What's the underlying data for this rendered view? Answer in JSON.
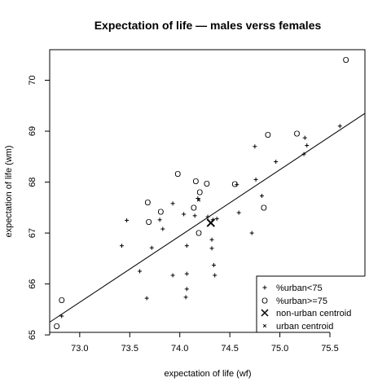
{
  "chart_data": {
    "type": "scatter",
    "title": "Expectation of life — males verss females",
    "xlabel": "expectation of life (wf)",
    "ylabel": "expectation of life (wm)",
    "xlim": [
      72.7,
      75.85
    ],
    "ylim": [
      65.05,
      70.6
    ],
    "x_ticks": [
      "73.0",
      "73.5",
      "74.0",
      "74.5",
      "75.0",
      "75.5"
    ],
    "y_ticks": [
      "65",
      "66",
      "67",
      "68",
      "69",
      "70"
    ],
    "grid": false,
    "legend_position": "bottom-right",
    "legend": [
      {
        "symbol": "+",
        "label": "%urban<75"
      },
      {
        "symbol": "O",
        "label": "%urban>=75"
      },
      {
        "symbol": "x",
        "label": "non-urban centroid"
      },
      {
        "symbol": "x",
        "label": "urban centroid"
      }
    ],
    "fit_line": {
      "x": [
        72.7,
        75.85
      ],
      "y": [
        65.25,
        69.35
      ]
    },
    "series": [
      {
        "name": "%urban<75",
        "symbol": "+",
        "points": [
          [
            72.82,
            65.37
          ],
          [
            73.42,
            66.75
          ],
          [
            73.47,
            67.25
          ],
          [
            73.6,
            66.25
          ],
          [
            73.67,
            65.72
          ],
          [
            73.72,
            66.71
          ],
          [
            73.8,
            67.26
          ],
          [
            73.83,
            67.08
          ],
          [
            73.93,
            67.58
          ],
          [
            73.93,
            66.17
          ],
          [
            74.04,
            67.37
          ],
          [
            74.06,
            65.74
          ],
          [
            74.07,
            65.9
          ],
          [
            74.07,
            66.2
          ],
          [
            74.07,
            66.75
          ],
          [
            74.15,
            67.34
          ],
          [
            74.18,
            67.68
          ],
          [
            74.28,
            67.32
          ],
          [
            74.32,
            66.87
          ],
          [
            74.32,
            66.7
          ],
          [
            74.33,
            67.26
          ],
          [
            74.34,
            66.37
          ],
          [
            74.35,
            66.17
          ],
          [
            74.37,
            67.28
          ],
          [
            74.57,
            67.95
          ],
          [
            74.59,
            67.4
          ],
          [
            74.72,
            67.0
          ],
          [
            74.75,
            68.7
          ],
          [
            74.76,
            68.05
          ],
          [
            74.82,
            67.73
          ],
          [
            74.96,
            68.4
          ],
          [
            75.24,
            68.55
          ],
          [
            75.25,
            68.87
          ],
          [
            75.27,
            68.72
          ],
          [
            75.6,
            69.1
          ]
        ]
      },
      {
        "name": "%urban>=75",
        "symbol": "O",
        "points": [
          [
            72.77,
            65.17
          ],
          [
            72.82,
            65.68
          ],
          [
            73.68,
            67.6
          ],
          [
            73.69,
            67.22
          ],
          [
            73.81,
            67.42
          ],
          [
            73.98,
            68.16
          ],
          [
            74.14,
            67.5
          ],
          [
            74.16,
            68.02
          ],
          [
            74.2,
            67.8
          ],
          [
            74.19,
            67.0
          ],
          [
            74.27,
            67.97
          ],
          [
            74.55,
            67.96
          ],
          [
            74.84,
            67.5
          ],
          [
            74.88,
            68.93
          ],
          [
            75.17,
            68.95
          ],
          [
            75.66,
            70.4
          ]
        ]
      },
      {
        "name": "non-urban centroid",
        "symbol": "x",
        "points": [
          [
            74.31,
            67.2
          ]
        ]
      },
      {
        "name": "urban centroid",
        "symbol": "x",
        "points": [
          [
            74.19,
            67.65
          ]
        ]
      }
    ]
  }
}
